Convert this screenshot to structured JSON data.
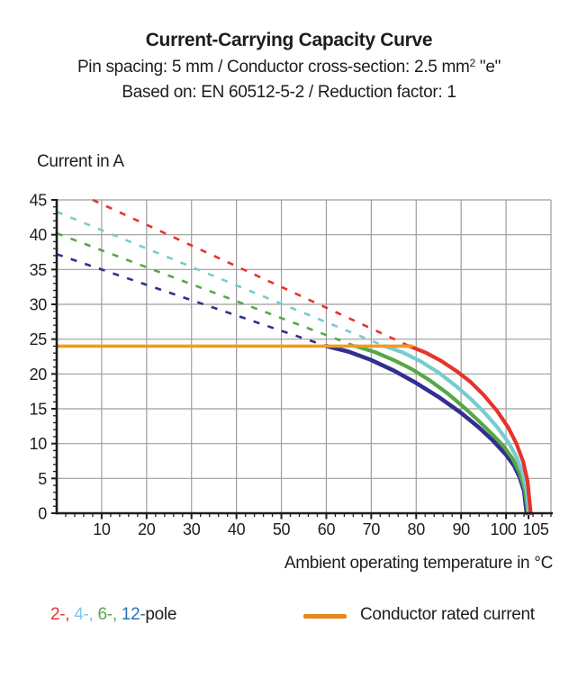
{
  "header": {
    "title": "Current-Carrying Capacity Curve",
    "subtitle1_pre": "Pin spacing: 5 mm / Conductor cross-section: 2.5 mm",
    "subtitle1_sup": "2",
    "subtitle1_post": " \"e\"",
    "subtitle2": "Based on: EN 60512-5-2 / Reduction factor: 1"
  },
  "chart_data": {
    "type": "line",
    "title": "Current-Carrying Capacity Curve",
    "xlabel": "Ambient operating temperature in °C",
    "ylabel": "Current in A",
    "xlim": [
      0,
      110
    ],
    "ylim": [
      0,
      45
    ],
    "x_major_ticks": [
      10,
      20,
      30,
      40,
      50,
      60,
      70,
      80,
      90,
      100,
      105
    ],
    "x_minor_step": 2,
    "y_major_ticks": [
      0,
      5,
      10,
      15,
      20,
      25,
      30,
      35,
      40,
      45
    ],
    "y_minor_step": 1,
    "x_gridlines": [
      10,
      20,
      30,
      40,
      50,
      60,
      70,
      80,
      90,
      100,
      110
    ],
    "y_gridlines": [
      5,
      10,
      15,
      20,
      25,
      30,
      35,
      40,
      45
    ],
    "grid": "on",
    "colors": {
      "grid": "#9d9d9c",
      "axis": "#1d1d1b",
      "text": "#1d1d1b",
      "rated": "#f09c1e"
    },
    "rated_current": {
      "label": "Conductor rated current",
      "value_A": 24,
      "x_start": 0,
      "x_end": 79.3
    },
    "series": [
      {
        "name": "12-pole",
        "color": "#312f90",
        "dashed_segment": [
          [
            0,
            37.2
          ],
          [
            60,
            24
          ]
        ],
        "solid_points": [
          [
            60,
            24
          ],
          [
            65,
            23.2
          ],
          [
            70,
            22.0
          ],
          [
            75,
            20.5
          ],
          [
            80,
            18.7
          ],
          [
            85,
            16.7
          ],
          [
            90,
            14.4
          ],
          [
            94,
            12.3
          ],
          [
            97,
            10.5
          ],
          [
            100,
            8.4
          ],
          [
            101.8,
            6.8
          ],
          [
            103,
            5.2
          ],
          [
            104,
            3.2
          ],
          [
            104.6,
            0
          ]
        ]
      },
      {
        "name": "6-pole",
        "color": "#57a747",
        "dashed_segment": [
          [
            0,
            40.2
          ],
          [
            66.5,
            24
          ]
        ],
        "solid_points": [
          [
            66.5,
            24
          ],
          [
            71,
            23.1
          ],
          [
            75,
            22.0
          ],
          [
            79,
            20.7
          ],
          [
            83,
            19.1
          ],
          [
            87,
            17.2
          ],
          [
            91,
            15.0
          ],
          [
            94,
            13.2
          ],
          [
            97,
            11.3
          ],
          [
            99.5,
            9.6
          ],
          [
            101.5,
            7.8
          ],
          [
            103,
            5.8
          ],
          [
            104.2,
            3.3
          ],
          [
            104.9,
            0
          ]
        ]
      },
      {
        "name": "4-pole",
        "color": "#79cbce",
        "dashed_segment": [
          [
            0,
            43.3
          ],
          [
            73,
            24
          ]
        ],
        "solid_points": [
          [
            73,
            24
          ],
          [
            77,
            23.1
          ],
          [
            81,
            21.8
          ],
          [
            85,
            20.2
          ],
          [
            89,
            18.2
          ],
          [
            92,
            16.5
          ],
          [
            95,
            14.6
          ],
          [
            98,
            12.4
          ],
          [
            100.5,
            10.2
          ],
          [
            102.3,
            8.1
          ],
          [
            103.7,
            5.7
          ],
          [
            104.6,
            3.2
          ],
          [
            105.1,
            0
          ]
        ]
      },
      {
        "name": "2-pole",
        "color": "#e5342b",
        "dashed_segment": [
          [
            8,
            45
          ],
          [
            78.5,
            24
          ]
        ],
        "solid_points": [
          [
            78.5,
            24
          ],
          [
            82,
            23.1
          ],
          [
            85.5,
            21.9
          ],
          [
            89,
            20.4
          ],
          [
            92,
            18.9
          ],
          [
            95,
            17.0
          ],
          [
            98,
            14.7
          ],
          [
            100.5,
            12.3
          ],
          [
            102.3,
            10.0
          ],
          [
            103.8,
            7.4
          ],
          [
            104.8,
            4.6
          ],
          [
            105.5,
            0
          ]
        ]
      }
    ]
  },
  "legend": {
    "pole_items": [
      {
        "label": "2-,",
        "color": "#e5342b"
      },
      {
        "label": "4-,",
        "color": "#7cc9e8"
      },
      {
        "label": "6-,",
        "color": "#57a747"
      },
      {
        "label": "12-",
        "color": "#2d70b5"
      }
    ],
    "pole_suffix": "pole",
    "rated_label": "Conductor rated current",
    "rated_color": "#e8861c"
  }
}
